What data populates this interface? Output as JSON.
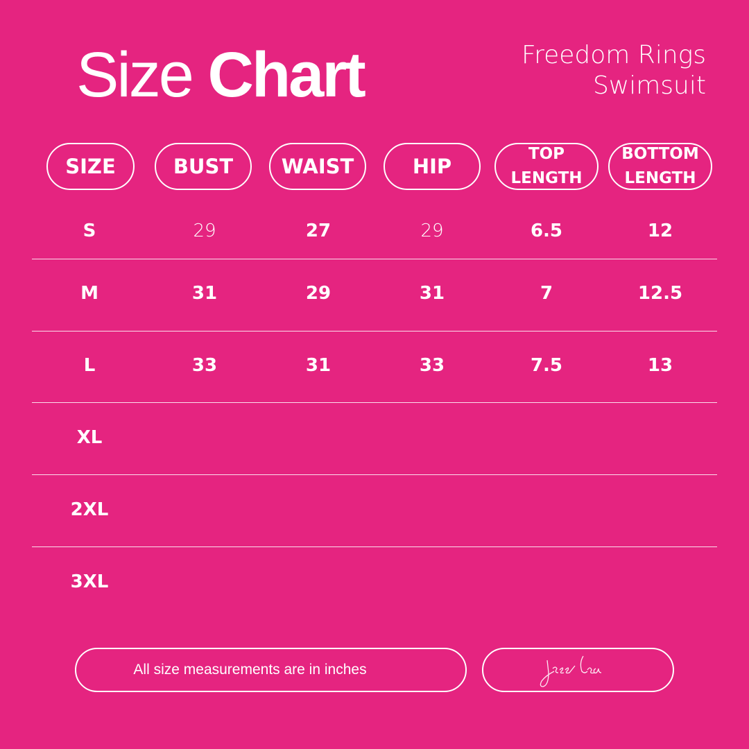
{
  "title": {
    "regular": "Size",
    "bold": "Chart"
  },
  "product": {
    "line1": "Freedom Rings",
    "line2": "Swimsuit"
  },
  "headers": [
    "SIZE",
    "BUST",
    "WAIST",
    "HIP",
    "TOP",
    "LENGTH",
    "BOTTOM",
    "LENGTH"
  ],
  "rows": [
    {
      "size": "S",
      "bust": "29",
      "waist": "27",
      "hip": "29",
      "top": "6.5",
      "bottom": "12"
    },
    {
      "size": "M",
      "bust": "31",
      "waist": "29",
      "hip": "31",
      "top": "7",
      "bottom": "12.5"
    },
    {
      "size": "L",
      "bust": "33",
      "waist": "31",
      "hip": "33",
      "top": "7.5",
      "bottom": "13"
    },
    {
      "size": "XL"
    },
    {
      "size": "2XL"
    },
    {
      "size": "3XL"
    }
  ],
  "note": "All size measurements are in inches",
  "logo_text": "jess lea",
  "colors": {
    "background": "#E52480",
    "foreground": "#FFFFFF"
  }
}
